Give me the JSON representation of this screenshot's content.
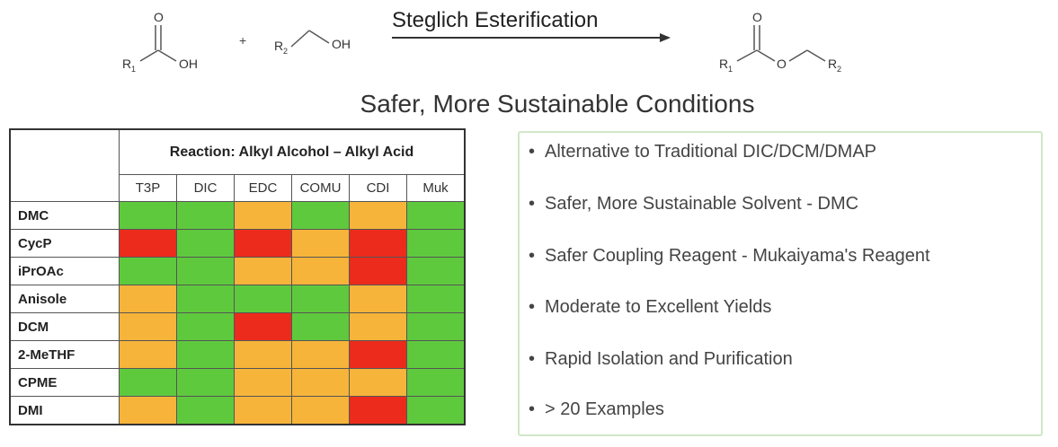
{
  "scheme": {
    "reagent_acid": {
      "oh": "OH",
      "r": "R",
      "r_sub": "1",
      "o": "O"
    },
    "plus": "+",
    "reagent_alcohol": {
      "r": "R",
      "r_sub": "2",
      "oh": "OH"
    },
    "arrow_label": "Steglich Esterification",
    "product": {
      "o_carbonyl": "O",
      "o_ester": "O",
      "r1": "R",
      "r1_sub": "1",
      "r2": "R",
      "r2_sub": "2"
    }
  },
  "heading": "Safer, More Sustainable Conditions",
  "table": {
    "reaction_label": "Reaction: Alkyl Alcohol – Alkyl Acid",
    "reagents": [
      "T3P",
      "DIC",
      "EDC",
      "COMU",
      "CDI",
      "Muk"
    ],
    "solvents": [
      {
        "name": "DMC",
        "results": [
          "green",
          "green",
          "orange",
          "green",
          "orange",
          "green"
        ]
      },
      {
        "name": "CycP",
        "results": [
          "red",
          "green",
          "red",
          "orange",
          "red",
          "green"
        ]
      },
      {
        "name": "iPrOAc",
        "results": [
          "green",
          "green",
          "orange",
          "orange",
          "red",
          "green"
        ]
      },
      {
        "name": "Anisole",
        "results": [
          "orange",
          "green",
          "green",
          "green",
          "orange",
          "green"
        ]
      },
      {
        "name": "DCM",
        "results": [
          "orange",
          "green",
          "red",
          "green",
          "orange",
          "green"
        ]
      },
      {
        "name": "2-MeTHF",
        "results": [
          "orange",
          "green",
          "orange",
          "orange",
          "red",
          "green"
        ]
      },
      {
        "name": "CPME",
        "results": [
          "green",
          "green",
          "orange",
          "orange",
          "orange",
          "green"
        ]
      },
      {
        "name": "DMI",
        "results": [
          "orange",
          "green",
          "orange",
          "orange",
          "red",
          "green"
        ]
      }
    ],
    "colors": {
      "green": "#5fc93e",
      "orange": "#f7b43a",
      "red": "#ec2b1c"
    }
  },
  "features": {
    "bullet": "•",
    "items": [
      "Alternative to Traditional DIC/DCM/DMAP",
      "Safer, More Sustainable Solvent - DMC",
      "Safer Coupling Reagent - Mukaiyama's Reagent",
      "Moderate to Excellent Yields",
      "Rapid Isolation and Purification",
      "> 20 Examples"
    ]
  }
}
